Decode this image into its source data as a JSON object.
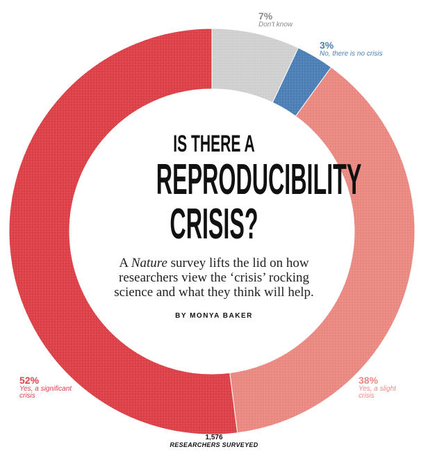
{
  "headline": {
    "line1": "Is there a",
    "line2": "Reproducibility",
    "line3": "crisis?"
  },
  "subhead": {
    "pre": "A ",
    "italic": "Nature",
    "post": " survey lifts the lid on how researchers view the ‘crisis’ rocking science and what they think will help."
  },
  "byline": "BY MONYA BAKER",
  "sample": {
    "count": "1,576",
    "label": "RESEARCHERS SURVEYED"
  },
  "labels": {
    "dont_know": {
      "pct": "7%",
      "text": "Don't know"
    },
    "no_crisis": {
      "pct": "3%",
      "text": "No, there is no crisis"
    },
    "slight": {
      "pct": "38%",
      "text_line1": "Yes, a slight",
      "text_line2": "crisis"
    },
    "significant": {
      "pct": "52%",
      "text_line1": "Yes, a significant",
      "text_line2": "crisis"
    }
  },
  "chart_data": {
    "type": "pie",
    "variant": "donut",
    "title": "Is there a reproducibility crisis?",
    "total_respondents": 1576,
    "slices": [
      {
        "name": "Don't know",
        "value": 7,
        "color": "#d0d0d0"
      },
      {
        "name": "No, there is no crisis",
        "value": 3,
        "color": "#4d80b6"
      },
      {
        "name": "Yes, a slight crisis",
        "value": 38,
        "color": "#ea8a82"
      },
      {
        "name": "Yes, a significant crisis",
        "value": 52,
        "color": "#dc4148"
      }
    ]
  }
}
